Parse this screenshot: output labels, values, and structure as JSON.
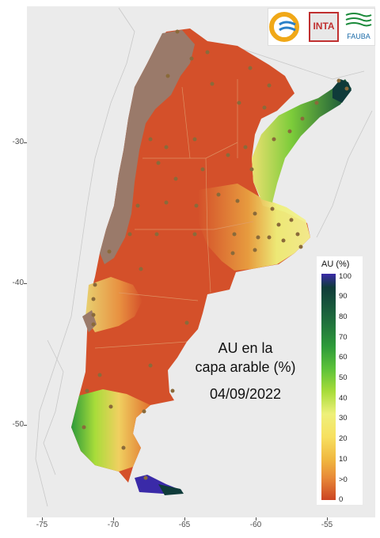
{
  "map": {
    "y_ticks": [
      "-30",
      "-40",
      "-50"
    ],
    "x_ticks": [
      "-75",
      "-70",
      "-65",
      "-60",
      "-55"
    ],
    "title_lines": [
      "AU en la",
      "capa arable (%)"
    ],
    "date": "04/09/2022"
  },
  "logos": {
    "inta": "INTA",
    "fauba": "FAUBA"
  },
  "legend": {
    "title": "AU (%)",
    "labels": [
      "100",
      "90",
      "80",
      "70",
      "60",
      "50",
      "40",
      "30",
      "20",
      "10",
      ">0",
      "0"
    ],
    "colors": [
      "#3a2aa8",
      "#0f3b3a",
      "#1e6b3c",
      "#2d9a3a",
      "#5cc23a",
      "#a8dc3a",
      "#eef07a",
      "#f7e060",
      "#f0b840",
      "#e88a38",
      "#d9562c",
      "#cc4422"
    ]
  },
  "colors": {
    "dry": "#d4502a",
    "mountain": "#9a7a6a",
    "wet": "#1f7a3a",
    "station": "#8a6a3a"
  }
}
